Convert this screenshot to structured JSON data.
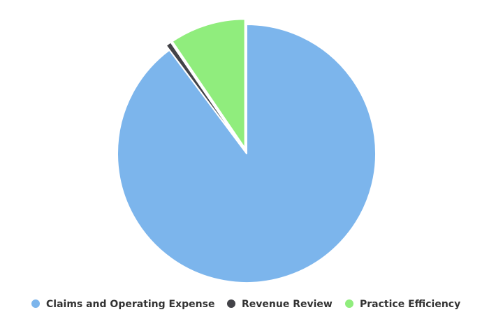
{
  "chart_data": {
    "type": "pie",
    "legend_position": "bottom",
    "series": [
      {
        "name": "Claims and Operating Expense",
        "value": 89.8,
        "color": "#7cb5ec"
      },
      {
        "name": "Revenue Review",
        "value": 0.7,
        "color": "#434348"
      },
      {
        "name": "Practice Efficiency",
        "value": 9.5,
        "color": "#90ed7d"
      }
    ]
  }
}
